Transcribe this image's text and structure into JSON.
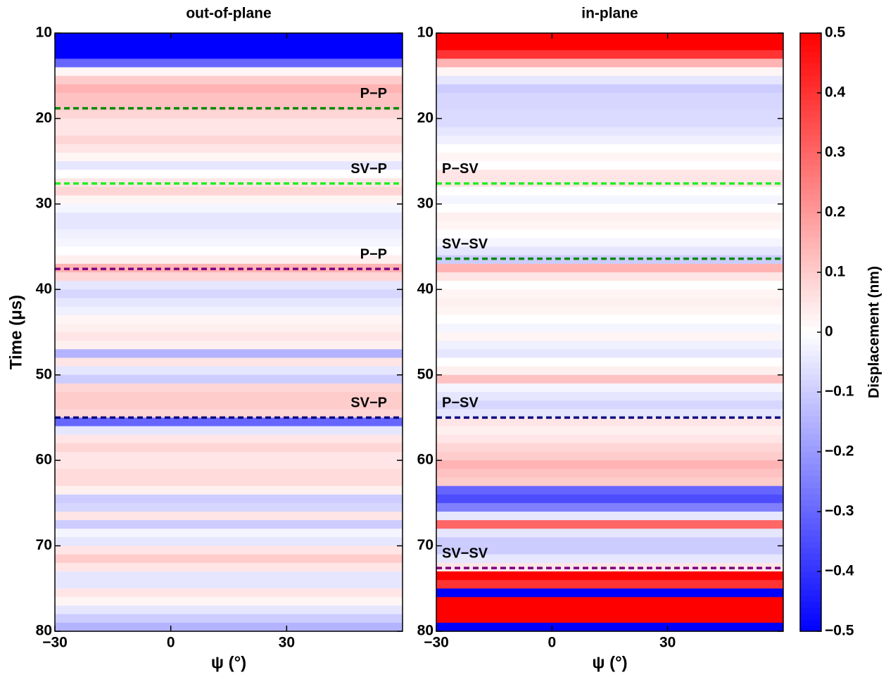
{
  "chart_data": [
    {
      "type": "heatmap",
      "title": "out-of-plane",
      "xlabel": "ψ (°)",
      "ylabel": "Time (μs)",
      "xlim": [
        -30,
        60
      ],
      "xticks": [
        {
          "value": -30,
          "label": "−30"
        },
        0,
        30
      ],
      "ylim": [
        80,
        10
      ],
      "yticks": [
        10,
        20,
        30,
        40,
        50,
        60,
        70,
        80
      ],
      "y": [
        10.5,
        11.5,
        12.5,
        13.5,
        14.5,
        15.5,
        16.5,
        17.5,
        18.5,
        19.5,
        20.5,
        21.5,
        22.5,
        23.5,
        24.5,
        25.5,
        26.5,
        27.5,
        28.5,
        29.5,
        30.5,
        31.5,
        32.5,
        33.5,
        34.5,
        35.5,
        36.5,
        37.5,
        38.5,
        39.5,
        40.5,
        41.5,
        42.5,
        43.5,
        44.5,
        45.5,
        46.5,
        47.5,
        48.5,
        49.5,
        50.5,
        51.5,
        52.5,
        53.5,
        54.5,
        55.5,
        56.5,
        57.5,
        58.5,
        59.5,
        60.5,
        61.5,
        62.5,
        63.5,
        64.5,
        65.5,
        66.5,
        67.5,
        68.5,
        69.5,
        70.5,
        71.5,
        72.5,
        73.5,
        74.5,
        75.5,
        76.5,
        77.5,
        78.5,
        79.5
      ],
      "values": [
        -0.5,
        -0.5,
        -0.5,
        -0.3,
        0.02,
        0.1,
        0.15,
        0.12,
        0.12,
        0.08,
        0.05,
        0.05,
        0.08,
        0.05,
        0.02,
        -0.05,
        0,
        0.05,
        0.08,
        0.02,
        -0.02,
        -0.05,
        -0.05,
        -0.03,
        -0.02,
        0,
        0.03,
        0.15,
        0.08,
        -0.05,
        -0.08,
        -0.05,
        -0.03,
        0.02,
        0.03,
        0.05,
        0.03,
        -0.15,
        0.05,
        -0.05,
        -0.1,
        0.08,
        0.1,
        0.1,
        0.08,
        -0.3,
        -0.05,
        0.05,
        0.08,
        0.05,
        0.05,
        0.07,
        0.07,
        0.03,
        -0.1,
        -0.08,
        0.05,
        -0.1,
        -0.02,
        -0.05,
        0.05,
        0.1,
        0.05,
        -0.05,
        -0.05,
        0.05,
        0.02,
        -0.05,
        -0.1,
        -0.15
      ],
      "annotations": [
        {
          "label": "P−P",
          "y": 18.8,
          "color": "#0a8a0a"
        },
        {
          "label": "SV−P",
          "y": 27.6,
          "color": "#22ee22"
        },
        {
          "label": "P−P",
          "y": 37.6,
          "color": "#800080"
        },
        {
          "label": "SV−P",
          "y": 55,
          "color": "#0a0a80"
        }
      ]
    },
    {
      "type": "heatmap",
      "title": "in-plane",
      "xlabel": "ψ (°)",
      "xlim": [
        -30,
        60
      ],
      "xticks": [
        {
          "value": -30,
          "label": "−30"
        },
        0,
        30
      ],
      "ylim": [
        80,
        10
      ],
      "yticks": [
        10,
        20,
        30,
        40,
        50,
        60,
        70,
        80
      ],
      "y": [
        10.5,
        11.5,
        12.5,
        13.5,
        14.5,
        15.5,
        16.5,
        17.5,
        18.5,
        19.5,
        20.5,
        21.5,
        22.5,
        23.5,
        24.5,
        25.5,
        26.5,
        27.5,
        28.5,
        29.5,
        30.5,
        31.5,
        32.5,
        33.5,
        34.5,
        35.5,
        36.5,
        37.5,
        38.5,
        39.5,
        40.5,
        41.5,
        42.5,
        43.5,
        44.5,
        45.5,
        46.5,
        47.5,
        48.5,
        49.5,
        50.5,
        51.5,
        52.5,
        53.5,
        54.5,
        55.5,
        56.5,
        57.5,
        58.5,
        59.5,
        60.5,
        61.5,
        62.5,
        63.5,
        64.5,
        65.5,
        66.5,
        67.5,
        68.5,
        69.5,
        70.5,
        71.5,
        72.5,
        73.5,
        74.5,
        75.5,
        76.5,
        77.5,
        78.5,
        79.5
      ],
      "values": [
        0.5,
        0.5,
        0.4,
        0.15,
        0.02,
        -0.05,
        -0.1,
        -0.08,
        -0.08,
        -0.07,
        -0.07,
        -0.05,
        -0.03,
        0,
        0.02,
        0,
        0.05,
        0.05,
        0,
        -0.02,
        0,
        0.03,
        0.02,
        0,
        -0.02,
        -0.05,
        -0.1,
        0.15,
        0.05,
        0,
        0.02,
        0.03,
        0.02,
        0,
        -0.02,
        0.02,
        -0.03,
        -0.05,
        0,
        0.03,
        0.12,
        -0.02,
        -0.05,
        -0.08,
        -0.05,
        0.05,
        0.03,
        0.05,
        0.08,
        0.1,
        0.15,
        0.12,
        0.1,
        -0.3,
        -0.35,
        -0.25,
        -0.05,
        0.3,
        -0.05,
        -0.1,
        -0.1,
        -0.05,
        0.05,
        0.5,
        0.4,
        -0.5,
        0.5,
        0.5,
        0.5,
        -0.5
      ],
      "annotations": [
        {
          "label": "P−SV",
          "y": 27.6,
          "color": "#22ee22"
        },
        {
          "label": "SV−SV",
          "y": 36.4,
          "color": "#0a8a0a"
        },
        {
          "label": "P−SV",
          "y": 55,
          "color": "#0a0a80"
        },
        {
          "label": "SV−SV",
          "y": 72.6,
          "color": "#800080"
        }
      ]
    },
    {
      "type": "colorbar",
      "label": "Displacement (nm)",
      "clim": [
        -0.5,
        0.5
      ],
      "ticks": [
        0.5,
        0.4,
        0.3,
        0.2,
        0.1,
        0,
        {
          "value": -0.1,
          "label": "−0.1"
        },
        {
          "value": -0.2,
          "label": "−0.2"
        },
        {
          "value": -0.3,
          "label": "−0.3"
        },
        {
          "value": -0.4,
          "label": "−0.4"
        },
        {
          "value": -0.5,
          "label": "−0.5"
        }
      ]
    }
  ]
}
